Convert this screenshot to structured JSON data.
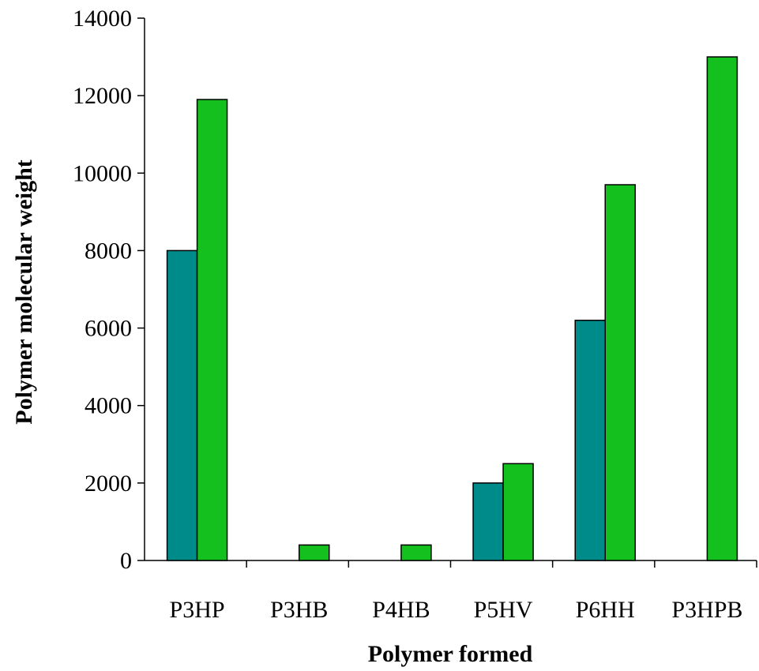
{
  "chart_data": {
    "type": "bar",
    "title": "",
    "xlabel": "Polymer formed",
    "ylabel": "Polymer molecular weight",
    "categories": [
      "P3HP",
      "P3HB",
      "P4HB",
      "P5HV",
      "P6HH",
      "P3HPB"
    ],
    "series": [
      {
        "values": [
          8000,
          0,
          0,
          2000,
          6200,
          0
        ]
      },
      {
        "values": [
          11900,
          400,
          400,
          2500,
          9700,
          13000
        ]
      }
    ],
    "ylim": [
      0,
      14000
    ],
    "yticks": [
      "0",
      "2000",
      "4000",
      "6000",
      "8000",
      "10000",
      "12000",
      "14000"
    ],
    "grid": false,
    "legend": "none",
    "colors": [
      "#008b8b",
      "#14c01e"
    ]
  }
}
